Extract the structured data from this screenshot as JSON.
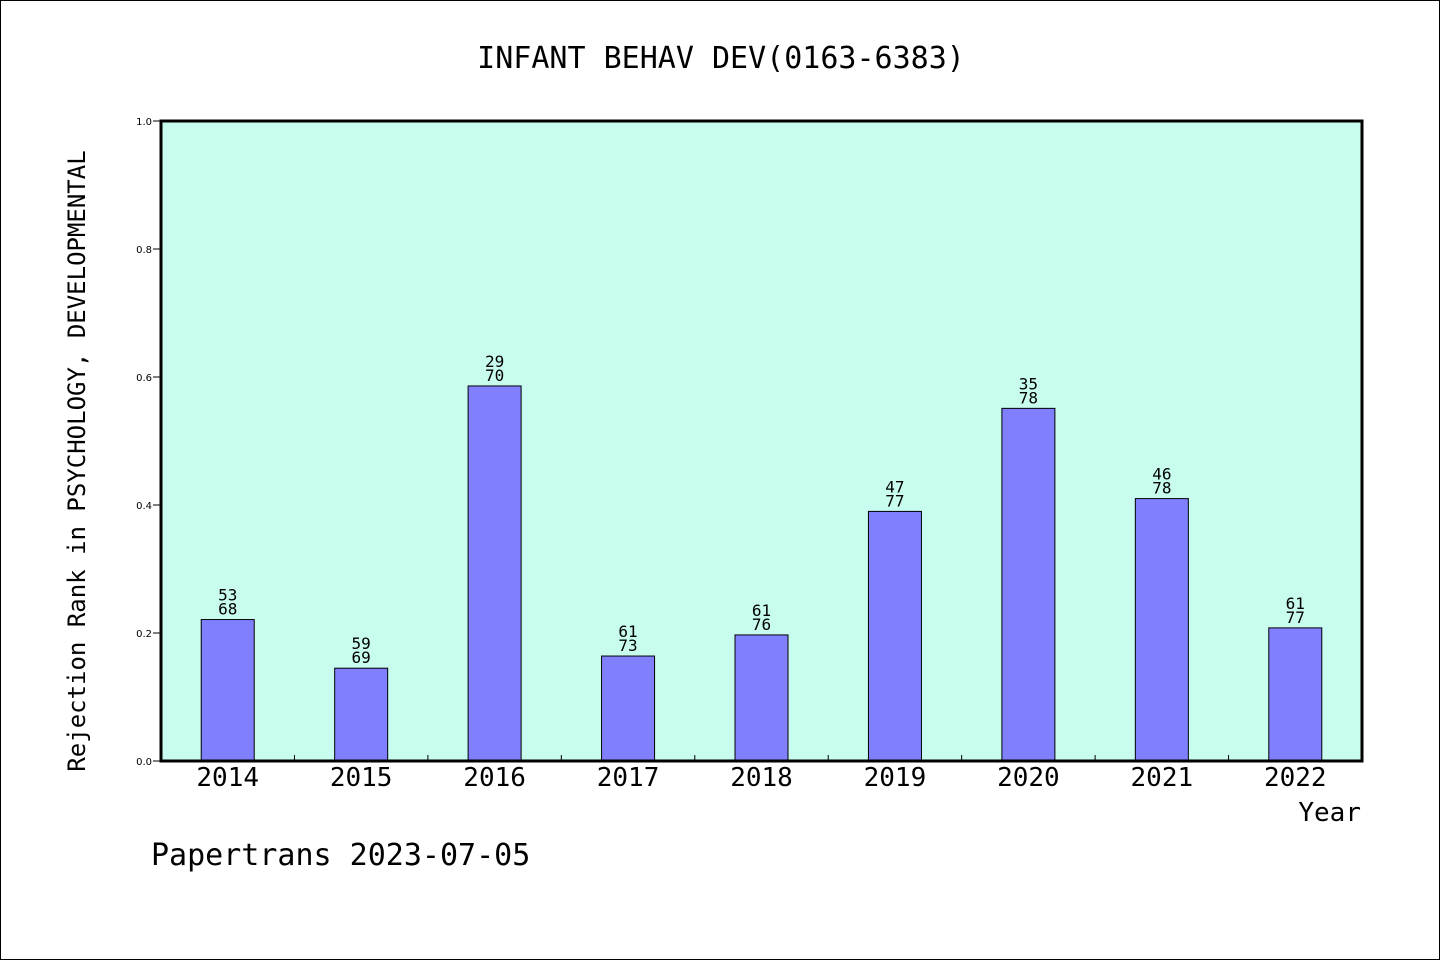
{
  "chart_data": {
    "type": "bar",
    "title": "INFANT BEHAV DEV(0163-6383)",
    "ylabel": "Rejection Rank in PSYCHOLOGY, DEVELOPMENTAL",
    "xlabel": "Year",
    "categories": [
      "2014",
      "2015",
      "2016",
      "2017",
      "2018",
      "2019",
      "2020",
      "2021",
      "2022"
    ],
    "values": [
      0.221,
      0.145,
      0.586,
      0.164,
      0.197,
      0.39,
      0.551,
      0.41,
      0.208
    ],
    "labels_top": [
      "53",
      "59",
      "29",
      "61",
      "61",
      "47",
      "35",
      "46",
      "61"
    ],
    "labels_bottom": [
      "68",
      "69",
      "70",
      "73",
      "76",
      "77",
      "78",
      "78",
      "77"
    ],
    "ylim": [
      0,
      1
    ],
    "yticks": [
      "0.0",
      "0.2",
      "0.4",
      "0.6",
      "0.8",
      "1.0"
    ],
    "grid": false,
    "legend": "none",
    "colors": {
      "plot_bg": "#c8fcee",
      "bar_fill": "#8080ff",
      "bar_stroke": "#000000"
    }
  },
  "footer": {
    "text": "Papertrans 2023-07-05"
  }
}
